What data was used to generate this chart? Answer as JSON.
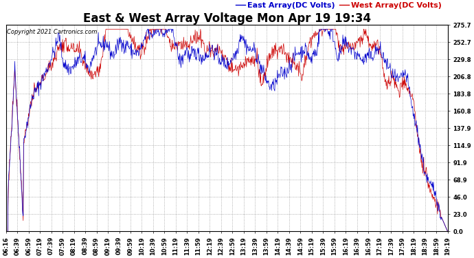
{
  "title": "East & West Array Voltage Mon Apr 19 19:34",
  "copyright": "Copyright 2021 Cartronics.com",
  "legend_east": "East Array(DC Volts)",
  "legend_west": "West Array(DC Volts)",
  "color_east": "#0000cc",
  "color_west": "#cc0000",
  "yticks": [
    0.0,
    23.0,
    46.0,
    68.9,
    91.9,
    114.9,
    137.9,
    160.8,
    183.8,
    206.8,
    229.8,
    252.7,
    275.7
  ],
  "ymin": 0.0,
  "ymax": 275.7,
  "background_color": "#ffffff",
  "grid_color": "#999999",
  "title_fontsize": 12,
  "legend_fontsize": 8,
  "tick_fontsize": 6,
  "copyright_fontsize": 6,
  "xtick_labels": [
    "06:16",
    "06:39",
    "06:59",
    "07:19",
    "07:39",
    "07:59",
    "08:19",
    "08:39",
    "08:59",
    "09:19",
    "09:39",
    "09:59",
    "10:19",
    "10:39",
    "10:59",
    "11:19",
    "11:39",
    "11:59",
    "12:19",
    "12:39",
    "12:59",
    "13:19",
    "13:39",
    "13:59",
    "14:19",
    "14:39",
    "14:59",
    "15:19",
    "15:39",
    "15:59",
    "16:19",
    "16:39",
    "16:59",
    "17:19",
    "17:39",
    "17:59",
    "18:19",
    "18:39",
    "18:59",
    "19:19"
  ],
  "n_points": 1000
}
